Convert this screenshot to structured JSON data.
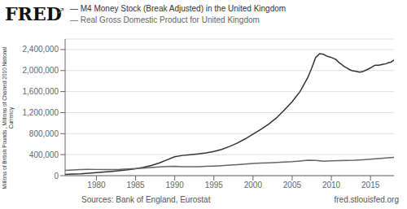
{
  "chart_data": {
    "type": "line",
    "title": "FRED",
    "annotations": [
      "↗",
      "Sources: Bank of England, Eurostat",
      "fred.stlouisfed.org"
    ],
    "ylabel": "Millions of British Pounds , Millions of Chained 2010 National\nCurrency",
    "series": [
      {
        "name": "— M4 Money Stock (Break Adjusted) in the United Kingdom",
        "color": "#333333",
        "x": [
          1976,
          1977,
          1978,
          1979,
          1980,
          1981,
          1982,
          1983,
          1984,
          1985,
          1986,
          1987,
          1988,
          1989,
          1990,
          1991,
          1992,
          1993,
          1994,
          1995,
          1996,
          1997,
          1998,
          1999,
          2000,
          2001,
          2002,
          2003,
          2004,
          2005,
          2006,
          2007,
          2007.5,
          2008,
          2008.5,
          2009,
          2009.5,
          2010,
          2010.3,
          2010.6,
          2011,
          2011.3,
          2011.6,
          2012,
          2012.3,
          2012.6,
          2013,
          2013.3,
          2013.6,
          2014,
          2014.3,
          2014.6,
          2015,
          2015.3,
          2015.6,
          2016,
          2016.3,
          2016.6,
          2017,
          2017.3,
          2017.6,
          2018
        ],
        "values": [
          25000,
          30000,
          36000,
          46000,
          58000,
          70000,
          82000,
          96000,
          112000,
          130000,
          158000,
          194000,
          240000,
          300000,
          360000,
          385000,
          400000,
          415000,
          435000,
          460000,
          500000,
          555000,
          620000,
          700000,
          790000,
          880000,
          980000,
          1100000,
          1250000,
          1410000,
          1600000,
          1870000,
          2050000,
          2250000,
          2320000,
          2310000,
          2270000,
          2250000,
          2230000,
          2210000,
          2150000,
          2120000,
          2080000,
          2050000,
          2020000,
          2000000,
          1990000,
          1980000,
          1970000,
          1980000,
          2000000,
          2020000,
          2050000,
          2080000,
          2100000,
          2100000,
          2110000,
          2120000,
          2130000,
          2150000,
          2160000,
          2200000
        ]
      },
      {
        "name": "— Real Gross Domestic Product for United Kingdom",
        "color": "#666666",
        "x": [
          1976,
          1977,
          1978,
          1979,
          1980,
          1981,
          1982,
          1983,
          1984,
          1985,
          1986,
          1987,
          1988,
          1989,
          1990,
          1991,
          1992,
          1993,
          1994,
          1995,
          1996,
          1997,
          1998,
          1999,
          2000,
          2001,
          2002,
          2003,
          2004,
          2005,
          2006,
          2007,
          2008,
          2009,
          2010,
          2011,
          2012,
          2013,
          2014,
          2015,
          2016,
          2017,
          2018
        ],
        "values": [
          100000,
          108000,
          115000,
          120000,
          118000,
          116000,
          116000,
          120000,
          128000,
          136000,
          144000,
          155000,
          167000,
          175000,
          177000,
          172000,
          172000,
          172000,
          178000,
          183000,
          190000,
          200000,
          210000,
          220000,
          232000,
          238000,
          243000,
          250000,
          260000,
          268000,
          280000,
          294000,
          292000,
          275000,
          282000,
          288000,
          289000,
          293000,
          302000,
          314000,
          325000,
          337000,
          350000
        ]
      }
    ],
    "xlim": [
      1976,
      2018
    ],
    "xticks": [
      1980,
      1985,
      1990,
      1995,
      2000,
      2005,
      2010,
      2015
    ],
    "ylim": [
      0,
      2600000
    ],
    "yticks": [
      0,
      {
        "value": 400000,
        "label": "400,000"
      },
      {
        "value": 800000,
        "label": "800,000"
      },
      {
        "value": 1200000,
        "label": "1,200,000"
      },
      {
        "value": 1600000,
        "label": "1,600,000"
      },
      {
        "value": 2000000,
        "label": "2,000,000"
      },
      {
        "value": 2400000,
        "label": "2,400,000"
      }
    ],
    "grid": true
  }
}
